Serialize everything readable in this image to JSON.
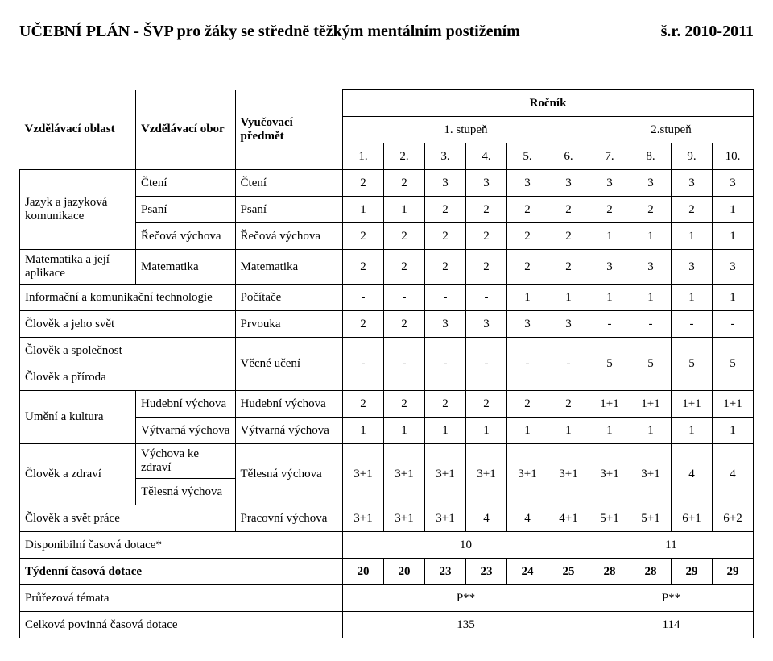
{
  "title_left": "UČEBNÍ PLÁN - ŠVP pro žáky se středně těžkým mentálním postižením",
  "title_right": "š.r. 2010-2011",
  "headers": {
    "area": "Vzdělávací oblast",
    "obor": "Vzdělávací obor",
    "subject": "Vyučovací  předmět",
    "rocnik": "Ročník",
    "stupen1": "1. stupeň",
    "stupen2": "2.stupeň"
  },
  "grade_nums": [
    "1.",
    "2.",
    "3.",
    "4.",
    "5.",
    "6.",
    "7.",
    "8.",
    "9.",
    "10."
  ],
  "rows": {
    "cteni": {
      "obor": "Čtení",
      "subj": "Čtení",
      "v": [
        "2",
        "2",
        "3",
        "3",
        "3",
        "3",
        "3",
        "3",
        "3",
        "3"
      ]
    },
    "psani": {
      "area": "Jazyk a jazyková komunikace",
      "obor": "Psaní",
      "subj": "Psaní",
      "v": [
        "1",
        "1",
        "2",
        "2",
        "2",
        "2",
        "2",
        "2",
        "2",
        "1"
      ]
    },
    "recova": {
      "obor": "Řečová výchova",
      "subj": "Řečová výchova",
      "v": [
        "2",
        "2",
        "2",
        "2",
        "2",
        "2",
        "1",
        "1",
        "1",
        "1"
      ]
    },
    "mat": {
      "area": "Matematika a její aplikace",
      "obor": "Matematika",
      "subj": "Matematika",
      "v": [
        "2",
        "2",
        "2",
        "2",
        "2",
        "2",
        "3",
        "3",
        "3",
        "3"
      ]
    },
    "ikt": {
      "area": "Informační a komunikační technologie",
      "subj": "Počítače",
      "v": [
        "-",
        "-",
        "-",
        "-",
        "1",
        "1",
        "1",
        "1",
        "1",
        "1"
      ]
    },
    "prvouka": {
      "area": "Člověk a jeho svět",
      "subj": "Prvouka",
      "v": [
        "2",
        "2",
        "3",
        "3",
        "3",
        "3",
        "-",
        "-",
        "-",
        "-"
      ]
    },
    "spolecnost": {
      "area": "Člověk a společnost"
    },
    "priroda": {
      "area": "Člověk a příroda"
    },
    "vecne": {
      "subj": "Věcné učení",
      "v": [
        "-",
        "-",
        "-",
        "-",
        "-",
        "-",
        "5",
        "5",
        "5",
        "5"
      ]
    },
    "umeni": {
      "area": "Umění a kultura"
    },
    "hudebni": {
      "obor": "Hudební výchova",
      "subj": "Hudební výchova",
      "v": [
        "2",
        "2",
        "2",
        "2",
        "2",
        "2",
        "1+1",
        "1+1",
        "1+1",
        "1+1"
      ]
    },
    "vytvarna": {
      "obor": "Výtvarná výchova",
      "subj": "Výtvarná výchova",
      "v": [
        "1",
        "1",
        "1",
        "1",
        "1",
        "1",
        "1",
        "1",
        "1",
        "1"
      ]
    },
    "zdravi": {
      "area": "Člověk a zdraví"
    },
    "vkz": {
      "obor": "Výchova ke zdraví"
    },
    "tv_obor": {
      "obor": "Tělesná výchova"
    },
    "telesna": {
      "subj": "Tělesná výchova",
      "v": [
        "3+1",
        "3+1",
        "3+1",
        "3+1",
        "3+1",
        "3+1",
        "3+1",
        "3+1",
        "4",
        "4"
      ]
    },
    "prace": {
      "area": "Člověk a svět práce",
      "subj": "Pracovní výchova",
      "v": [
        "3+1",
        "3+1",
        "3+1",
        "4",
        "4",
        "4+1",
        "5+1",
        "5+1",
        "6+1",
        "6+2"
      ]
    },
    "dispo": {
      "label": "Disponibilní časová dotace*",
      "s1": "10",
      "s2": "11"
    },
    "tyden": {
      "label": "Týdenní časová dotace",
      "v": [
        "20",
        "20",
        "23",
        "23",
        "24",
        "25",
        "28",
        "28",
        "29",
        "29"
      ]
    },
    "prurez": {
      "label": "Průřezová témata",
      "p": "P**"
    },
    "celkova": {
      "label": "Celková povinná časová dotace",
      "s1": "135",
      "s2": "114"
    }
  }
}
